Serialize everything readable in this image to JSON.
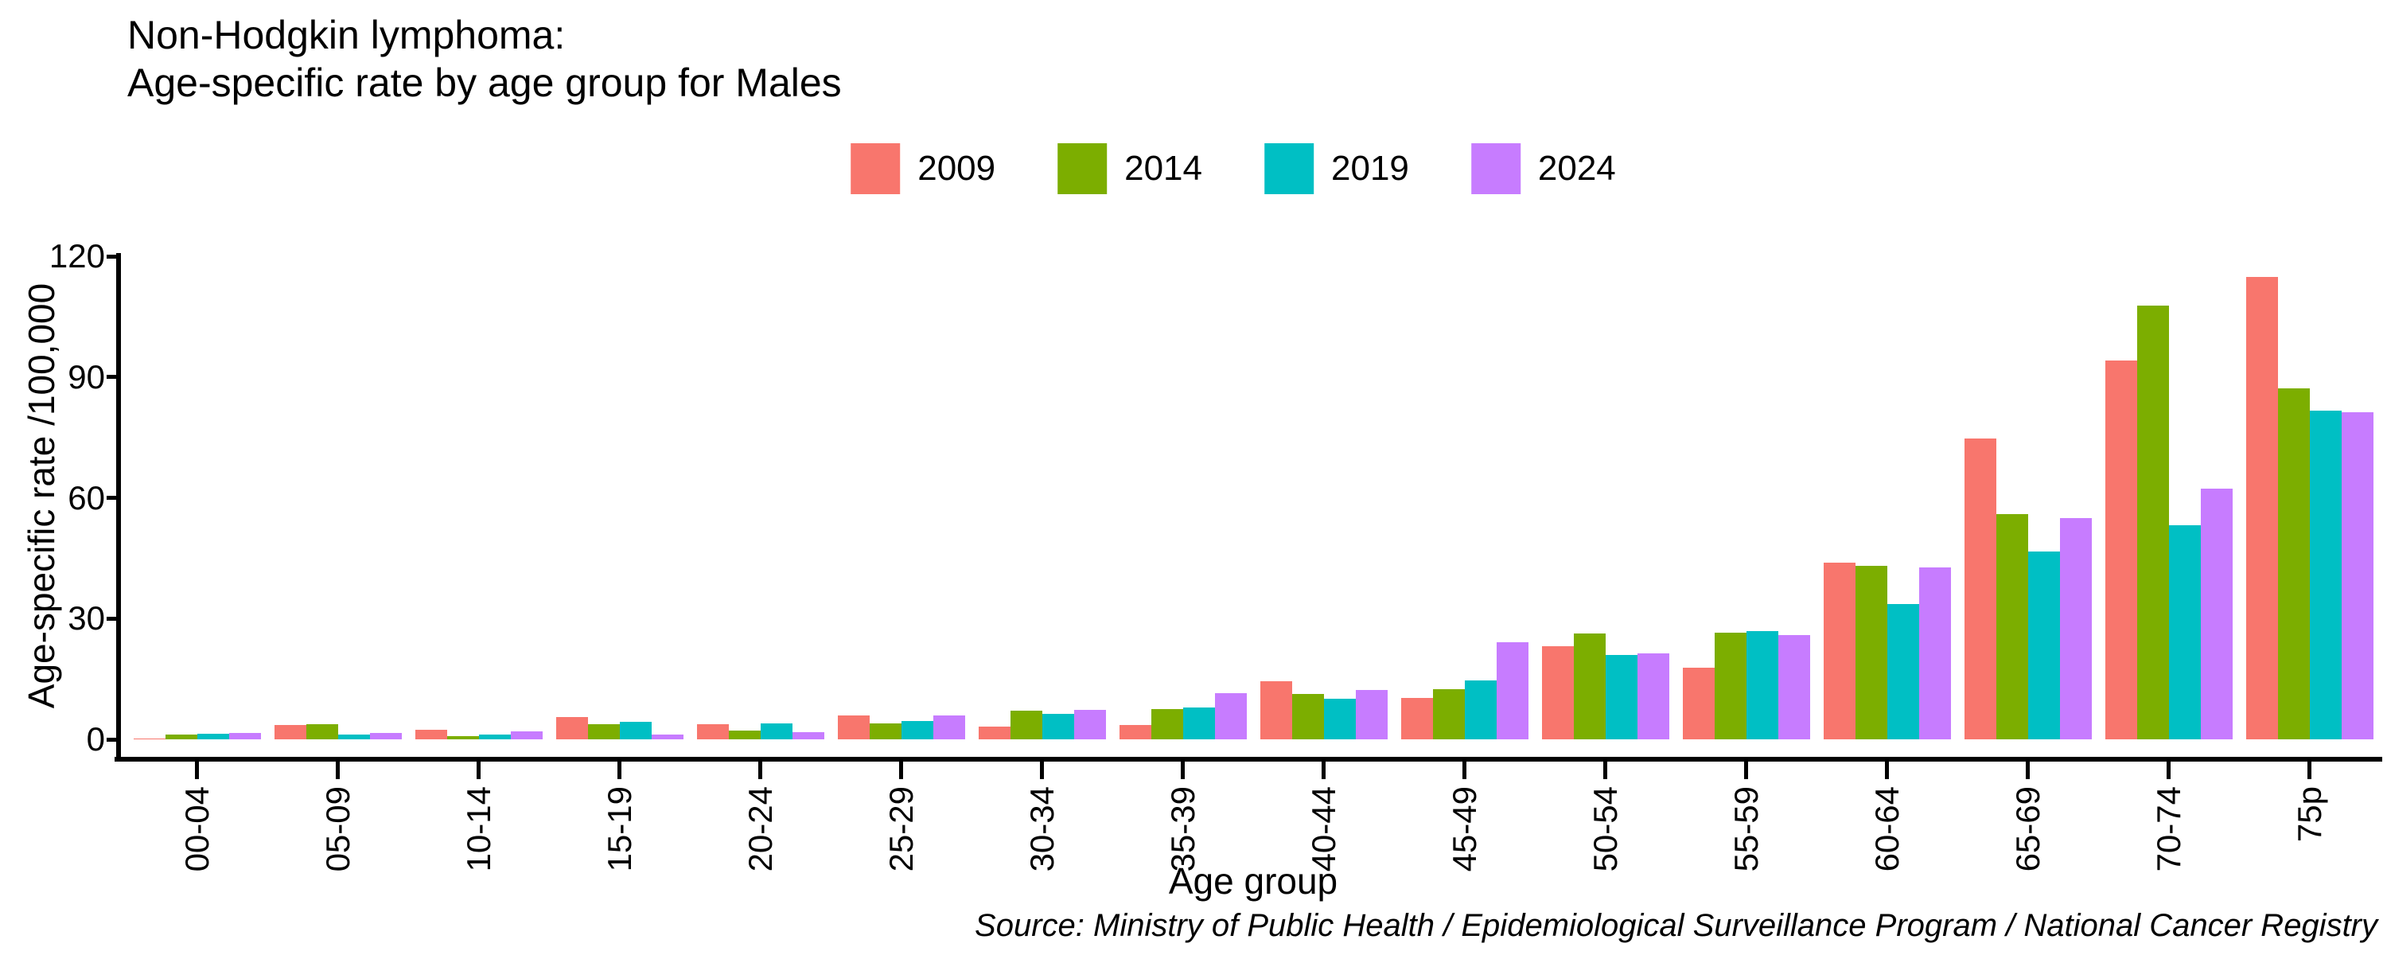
{
  "title": {
    "line1": "Non-Hodgkin lymphoma:",
    "line2": "Age-specific rate by age group for Males"
  },
  "axes": {
    "y": {
      "label": "Age-specific rate /100,000",
      "ticks": [
        0,
        30,
        60,
        90,
        120
      ],
      "max": 120
    },
    "x": {
      "label": "Age group"
    }
  },
  "source": "Source: Ministry of Public Health / Epidemiological Surveillance Program / National Cancer Registry",
  "colors": {
    "series_2009": "#F8766D",
    "series_2014": "#7CAE00",
    "series_2019": "#00BFC4",
    "series_2024": "#C77CFF",
    "axis": "#000000",
    "background": "#FFFFFF"
  },
  "chart_data": {
    "type": "bar",
    "title": "Non-Hodgkin lymphoma: Age-specific rate by age group for Males",
    "xlabel": "Age group",
    "ylabel": "Age-specific rate /100,000",
    "ylim": [
      0,
      120
    ],
    "yticks": [
      0,
      30,
      60,
      90,
      120
    ],
    "grid": false,
    "legend_position": "top-center",
    "categories": [
      "00-04",
      "05-09",
      "10-14",
      "15-19",
      "20-24",
      "25-29",
      "30-34",
      "35-39",
      "40-44",
      "45-49",
      "50-54",
      "55-59",
      "60-64",
      "65-69",
      "70-74",
      "75p"
    ],
    "series": [
      {
        "name": "2009",
        "color": "#F8766D",
        "values": [
          0.1,
          3.6,
          2.3,
          5.6,
          3.7,
          5.9,
          3.1,
          3.5,
          14.4,
          10.3,
          23.1,
          17.7,
          43.9,
          74.8,
          94.2,
          114.9
        ]
      },
      {
        "name": "2014",
        "color": "#7CAE00",
        "values": [
          1.1,
          3.7,
          0.7,
          3.7,
          2.2,
          3.9,
          7.1,
          7.6,
          11.2,
          12.4,
          26.2,
          26.5,
          43.0,
          56.0,
          107.7,
          87.2
        ]
      },
      {
        "name": "2019",
        "color": "#00BFC4",
        "values": [
          1.4,
          1.2,
          1.1,
          4.4,
          4.0,
          4.6,
          6.3,
          8.0,
          10.1,
          14.6,
          21.0,
          26.8,
          33.7,
          46.7,
          53.2,
          81.6
        ]
      },
      {
        "name": "2024",
        "color": "#C77CFF",
        "values": [
          1.5,
          1.5,
          1.9,
          1.1,
          1.7,
          5.9,
          7.3,
          11.5,
          12.3,
          24.1,
          21.3,
          25.8,
          42.7,
          54.9,
          62.3,
          81.3
        ]
      }
    ]
  }
}
